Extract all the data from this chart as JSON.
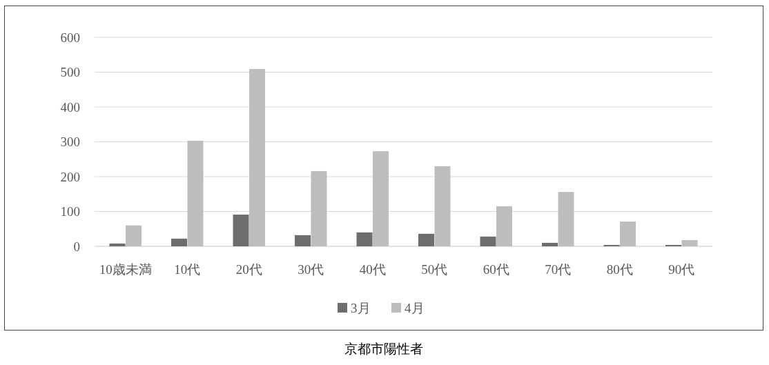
{
  "chart_data": {
    "type": "bar",
    "title": "京都市陽性者",
    "categories": [
      "10歳未満",
      "10代",
      "20代",
      "30代",
      "40代",
      "50代",
      "60代",
      "70代",
      "80代",
      "90代"
    ],
    "series": [
      {
        "name": "3月",
        "color": "#6d6d6d",
        "values": [
          8,
          22,
          91,
          32,
          40,
          36,
          28,
          10,
          4,
          4
        ]
      },
      {
        "name": "4月",
        "color": "#bdbdbd",
        "values": [
          60,
          303,
          509,
          216,
          273,
          230,
          115,
          156,
          71,
          18
        ]
      }
    ],
    "ylim": [
      0,
      600
    ],
    "yticks": [
      0,
      100,
      200,
      300,
      400,
      500,
      600
    ],
    "grid": "y",
    "legend": "bottom"
  }
}
